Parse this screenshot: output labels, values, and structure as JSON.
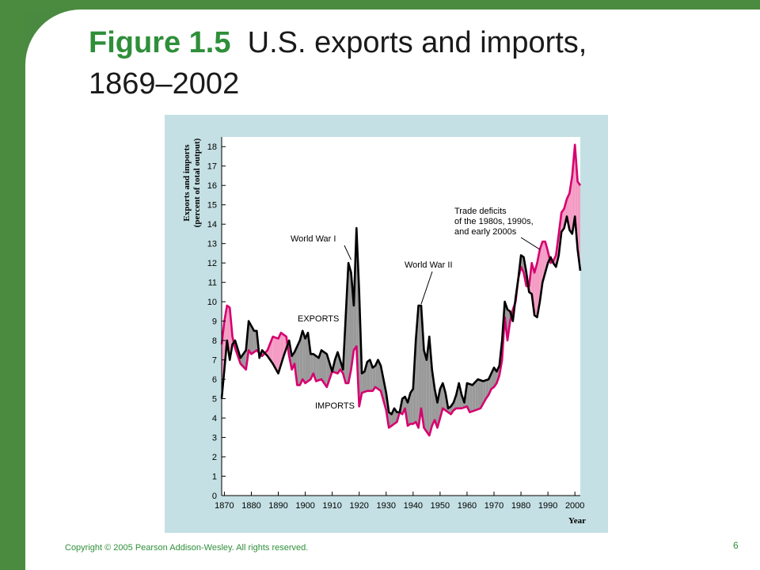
{
  "slide": {
    "figure_label": "Figure 1.5",
    "title_text": "U.S. exports and imports,",
    "title_line2": "1869–2002",
    "copyright": "Copyright © 2005 Pearson Addison-Wesley. All rights reserved.",
    "page_number": "6"
  },
  "colors": {
    "brand_green": "#2f8f3a",
    "frame_green": "#4b8b3f",
    "panel": "#c4e0e4",
    "exports_line": "#000000",
    "imports_line": "#d6006e",
    "export_surplus_fill": "#9a9a9a",
    "trade_deficit_fill": "#f49cc4"
  },
  "chart_data": {
    "type": "line",
    "ylabel_line1": "Exports and imports",
    "ylabel_line2": "(percent of total output)",
    "xlabel": "Year",
    "xlim": [
      1869,
      2002
    ],
    "ylim": [
      0,
      18.5
    ],
    "x_ticks": [
      1870,
      1880,
      1890,
      1900,
      1910,
      1920,
      1930,
      1940,
      1950,
      1960,
      1970,
      1980,
      1990,
      2000
    ],
    "y_ticks": [
      0,
      1,
      2,
      3,
      4,
      5,
      6,
      7,
      8,
      9,
      10,
      11,
      12,
      13,
      14,
      15,
      16,
      17,
      18
    ],
    "fill": "area between series: gray where exports exceed imports, pink where imports exceed exports",
    "series": [
      {
        "name": "EXPORTS",
        "points": [
          [
            1869,
            5.0
          ],
          [
            1871,
            8.0
          ],
          [
            1872,
            7.0
          ],
          [
            1873,
            7.8
          ],
          [
            1874,
            8.0
          ],
          [
            1876,
            7.1
          ],
          [
            1878,
            7.5
          ],
          [
            1879,
            9.0
          ],
          [
            1881,
            8.5
          ],
          [
            1882,
            8.5
          ],
          [
            1883,
            7.1
          ],
          [
            1884,
            7.5
          ],
          [
            1886,
            7.2
          ],
          [
            1888,
            6.8
          ],
          [
            1890,
            6.3
          ],
          [
            1892,
            7.2
          ],
          [
            1894,
            8.0
          ],
          [
            1895,
            7.2
          ],
          [
            1896,
            7.4
          ],
          [
            1898,
            8.0
          ],
          [
            1899,
            8.5
          ],
          [
            1900,
            8.1
          ],
          [
            1901,
            8.4
          ],
          [
            1902,
            7.3
          ],
          [
            1903,
            7.3
          ],
          [
            1905,
            7.1
          ],
          [
            1906,
            7.5
          ],
          [
            1908,
            7.3
          ],
          [
            1910,
            6.4
          ],
          [
            1911,
            7.0
          ],
          [
            1912,
            7.4
          ],
          [
            1914,
            6.5
          ],
          [
            1916,
            12.0
          ],
          [
            1917,
            11.5
          ],
          [
            1918,
            9.8
          ],
          [
            1919,
            13.8
          ],
          [
            1920,
            10.5
          ],
          [
            1921,
            6.3
          ],
          [
            1922,
            6.4
          ],
          [
            1923,
            6.9
          ],
          [
            1924,
            7.0
          ],
          [
            1925,
            6.6
          ],
          [
            1926,
            6.7
          ],
          [
            1927,
            7.0
          ],
          [
            1928,
            6.7
          ],
          [
            1930,
            5.3
          ],
          [
            1931,
            4.3
          ],
          [
            1932,
            4.2
          ],
          [
            1933,
            4.5
          ],
          [
            1934,
            4.3
          ],
          [
            1935,
            4.3
          ],
          [
            1936,
            5.0
          ],
          [
            1937,
            5.1
          ],
          [
            1938,
            4.8
          ],
          [
            1939,
            5.3
          ],
          [
            1940,
            5.5
          ],
          [
            1941,
            8.0
          ],
          [
            1942,
            9.8
          ],
          [
            1943,
            9.8
          ],
          [
            1944,
            7.5
          ],
          [
            1945,
            7.0
          ],
          [
            1946,
            8.2
          ],
          [
            1947,
            6.5
          ],
          [
            1948,
            5.5
          ],
          [
            1949,
            4.8
          ],
          [
            1950,
            5.5
          ],
          [
            1951,
            5.8
          ],
          [
            1952,
            5.3
          ],
          [
            1953,
            4.5
          ],
          [
            1954,
            4.6
          ],
          [
            1955,
            4.8
          ],
          [
            1956,
            5.2
          ],
          [
            1957,
            5.8
          ],
          [
            1958,
            5.2
          ],
          [
            1959,
            4.8
          ],
          [
            1960,
            5.8
          ],
          [
            1962,
            5.7
          ],
          [
            1964,
            6.0
          ],
          [
            1966,
            5.9
          ],
          [
            1968,
            6.0
          ],
          [
            1969,
            6.3
          ],
          [
            1970,
            6.6
          ],
          [
            1971,
            6.4
          ],
          [
            1972,
            6.7
          ],
          [
            1973,
            8.0
          ],
          [
            1974,
            10.0
          ],
          [
            1975,
            9.6
          ],
          [
            1976,
            9.5
          ],
          [
            1977,
            9.0
          ],
          [
            1978,
            10.2
          ],
          [
            1979,
            11.2
          ],
          [
            1980,
            12.4
          ],
          [
            1981,
            12.3
          ],
          [
            1982,
            11.5
          ],
          [
            1983,
            10.5
          ],
          [
            1984,
            10.4
          ],
          [
            1985,
            9.3
          ],
          [
            1986,
            9.2
          ],
          [
            1987,
            10.0
          ],
          [
            1988,
            11.0
          ],
          [
            1989,
            11.5
          ],
          [
            1990,
            12.0
          ],
          [
            1991,
            12.3
          ],
          [
            1992,
            12.0
          ],
          [
            1993,
            11.8
          ],
          [
            1994,
            12.4
          ],
          [
            1995,
            13.6
          ],
          [
            1996,
            13.8
          ],
          [
            1997,
            14.4
          ],
          [
            1998,
            13.7
          ],
          [
            1999,
            13.5
          ],
          [
            2000,
            14.4
          ],
          [
            2001,
            12.7
          ],
          [
            2002,
            11.6
          ]
        ]
      },
      {
        "name": "IMPORTS",
        "points": [
          [
            1869,
            7.8
          ],
          [
            1870,
            9.0
          ],
          [
            1871,
            9.8
          ],
          [
            1872,
            9.7
          ],
          [
            1873,
            8.2
          ],
          [
            1874,
            7.6
          ],
          [
            1876,
            6.8
          ],
          [
            1878,
            6.5
          ],
          [
            1879,
            7.5
          ],
          [
            1880,
            7.3
          ],
          [
            1882,
            7.5
          ],
          [
            1884,
            7.2
          ],
          [
            1886,
            7.5
          ],
          [
            1888,
            8.2
          ],
          [
            1890,
            8.1
          ],
          [
            1891,
            8.4
          ],
          [
            1893,
            8.2
          ],
          [
            1894,
            7.2
          ],
          [
            1895,
            6.5
          ],
          [
            1896,
            6.8
          ],
          [
            1897,
            5.7
          ],
          [
            1898,
            5.7
          ],
          [
            1899,
            6.0
          ],
          [
            1900,
            5.8
          ],
          [
            1902,
            6.0
          ],
          [
            1903,
            6.3
          ],
          [
            1904,
            5.9
          ],
          [
            1906,
            6.0
          ],
          [
            1908,
            5.6
          ],
          [
            1910,
            6.4
          ],
          [
            1912,
            6.3
          ],
          [
            1913,
            6.5
          ],
          [
            1914,
            6.3
          ],
          [
            1915,
            5.8
          ],
          [
            1916,
            5.8
          ],
          [
            1917,
            6.5
          ],
          [
            1918,
            7.5
          ],
          [
            1919,
            7.7
          ],
          [
            1920,
            4.6
          ],
          [
            1921,
            5.3
          ],
          [
            1923,
            5.4
          ],
          [
            1925,
            5.4
          ],
          [
            1926,
            5.6
          ],
          [
            1928,
            5.4
          ],
          [
            1930,
            4.4
          ],
          [
            1931,
            3.5
          ],
          [
            1932,
            3.6
          ],
          [
            1934,
            3.8
          ],
          [
            1935,
            4.3
          ],
          [
            1936,
            4.2
          ],
          [
            1937,
            4.5
          ],
          [
            1938,
            3.6
          ],
          [
            1939,
            3.7
          ],
          [
            1940,
            3.7
          ],
          [
            1941,
            3.8
          ],
          [
            1942,
            3.5
          ],
          [
            1943,
            4.5
          ],
          [
            1944,
            3.5
          ],
          [
            1945,
            3.3
          ],
          [
            1946,
            3.1
          ],
          [
            1947,
            3.6
          ],
          [
            1948,
            3.9
          ],
          [
            1949,
            3.5
          ],
          [
            1950,
            4.0
          ],
          [
            1951,
            4.5
          ],
          [
            1952,
            4.4
          ],
          [
            1954,
            4.2
          ],
          [
            1955,
            4.4
          ],
          [
            1956,
            4.5
          ],
          [
            1958,
            4.5
          ],
          [
            1960,
            4.6
          ],
          [
            1961,
            4.3
          ],
          [
            1963,
            4.4
          ],
          [
            1965,
            4.5
          ],
          [
            1967,
            5.0
          ],
          [
            1968,
            5.2
          ],
          [
            1969,
            5.5
          ],
          [
            1970,
            5.6
          ],
          [
            1971,
            5.8
          ],
          [
            1972,
            6.2
          ],
          [
            1973,
            7.0
          ],
          [
            1974,
            9.2
          ],
          [
            1975,
            8.0
          ],
          [
            1976,
            9.0
          ],
          [
            1977,
            9.6
          ],
          [
            1978,
            10.0
          ],
          [
            1979,
            11.2
          ],
          [
            1980,
            11.8
          ],
          [
            1981,
            11.5
          ],
          [
            1982,
            10.8
          ],
          [
            1983,
            10.8
          ],
          [
            1984,
            12.0
          ],
          [
            1985,
            11.5
          ],
          [
            1986,
            12.0
          ],
          [
            1987,
            12.7
          ],
          [
            1988,
            13.1
          ],
          [
            1989,
            13.1
          ],
          [
            1990,
            12.6
          ],
          [
            1991,
            12.0
          ],
          [
            1992,
            12.1
          ],
          [
            1993,
            12.4
          ],
          [
            1994,
            13.5
          ],
          [
            1995,
            14.6
          ],
          [
            1996,
            14.8
          ],
          [
            1997,
            15.3
          ],
          [
            1998,
            15.6
          ],
          [
            1999,
            16.5
          ],
          [
            2000,
            18.1
          ],
          [
            2001,
            16.2
          ],
          [
            2002,
            16.0
          ]
        ]
      }
    ],
    "annotations": [
      {
        "text": "World War I",
        "points_to": [
          1917,
          12.0
        ]
      },
      {
        "text": "World War II",
        "points_to": [
          1943,
          9.8
        ]
      },
      {
        "lines": [
          "Trade deficits",
          "of the 1980s, 1990s,",
          "and early 2000s"
        ],
        "points_to": [
          1987,
          12.7
        ]
      }
    ]
  }
}
